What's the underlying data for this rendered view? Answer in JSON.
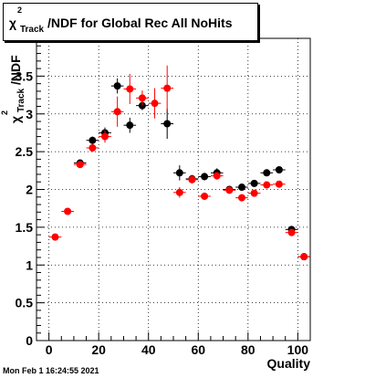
{
  "chart_data": {
    "type": "scatter",
    "title": "χ²_Track/NDF for Global Rec All NoHits",
    "title_parts": {
      "symbol": "χ",
      "sup": "2",
      "sub": "Track",
      "rest": "/NDF for Global Rec All NoHits"
    },
    "xlabel": "Quality",
    "ylabel_parts": {
      "symbol": "χ",
      "sup": "2",
      "sub": "Track",
      "rest": "/NDF"
    },
    "xlim": [
      -5,
      105
    ],
    "ylim": [
      0,
      4.0
    ],
    "x_ticks": [
      0,
      20,
      40,
      60,
      80,
      100
    ],
    "y_ticks": [
      0,
      0.5,
      1,
      1.5,
      2,
      2.5,
      3,
      3.5
    ],
    "y_tick_labels": [
      "0",
      "0.5",
      "1",
      "1.5",
      "2",
      "2.5",
      "3",
      "3.5"
    ],
    "grid": true,
    "series": [
      {
        "color": "#000000",
        "points": [
          {
            "x": 12.5,
            "y": 2.35,
            "err": 0.04
          },
          {
            "x": 17.5,
            "y": 2.65,
            "err": 0.05
          },
          {
            "x": 22.5,
            "y": 2.75,
            "err": 0.07
          },
          {
            "x": 27.5,
            "y": 3.37,
            "err": 0.1
          },
          {
            "x": 32.5,
            "y": 2.85,
            "err": 0.1
          },
          {
            "x": 37.5,
            "y": 3.11,
            "err": 0.06
          },
          {
            "x": 47.5,
            "y": 2.87,
            "err": 0.2
          },
          {
            "x": 52.5,
            "y": 2.22,
            "err": 0.1
          },
          {
            "x": 57.5,
            "y": 2.14,
            "err": 0.05
          },
          {
            "x": 62.5,
            "y": 2.17,
            "err": 0.05
          },
          {
            "x": 67.5,
            "y": 2.22,
            "err": 0.06
          },
          {
            "x": 72.5,
            "y": 2.0,
            "err": 0.04
          },
          {
            "x": 77.5,
            "y": 2.03,
            "err": 0.04
          },
          {
            "x": 82.5,
            "y": 2.08,
            "err": 0.04
          },
          {
            "x": 87.5,
            "y": 2.22,
            "err": 0.03
          },
          {
            "x": 92.5,
            "y": 2.26,
            "err": 0.03
          },
          {
            "x": 97.5,
            "y": 1.47,
            "err": 0.03
          },
          {
            "x": 102.5,
            "y": 1.11,
            "err": 0.02
          }
        ]
      },
      {
        "color": "#ff0000",
        "points": [
          {
            "x": 2.5,
            "y": 1.37,
            "err": 0.02
          },
          {
            "x": 7.5,
            "y": 1.71,
            "err": 0.02
          },
          {
            "x": 12.5,
            "y": 2.33,
            "err": 0.03
          },
          {
            "x": 17.5,
            "y": 2.55,
            "err": 0.05
          },
          {
            "x": 22.5,
            "y": 2.7,
            "err": 0.08
          },
          {
            "x": 27.5,
            "y": 3.03,
            "err": 0.2
          },
          {
            "x": 32.5,
            "y": 3.33,
            "err": 0.2
          },
          {
            "x": 37.5,
            "y": 3.21,
            "err": 0.1
          },
          {
            "x": 42.5,
            "y": 3.14,
            "err": 0.2
          },
          {
            "x": 47.5,
            "y": 3.34,
            "err": 0.3
          },
          {
            "x": 52.5,
            "y": 1.96,
            "err": 0.07
          },
          {
            "x": 57.5,
            "y": 2.13,
            "err": 0.05
          },
          {
            "x": 62.5,
            "y": 1.91,
            "err": 0.05
          },
          {
            "x": 67.5,
            "y": 2.18,
            "err": 0.05
          },
          {
            "x": 72.5,
            "y": 1.99,
            "err": 0.04
          },
          {
            "x": 77.5,
            "y": 1.89,
            "err": 0.04
          },
          {
            "x": 82.5,
            "y": 1.95,
            "err": 0.03
          },
          {
            "x": 87.5,
            "y": 2.06,
            "err": 0.03
          },
          {
            "x": 92.5,
            "y": 2.07,
            "err": 0.03
          },
          {
            "x": 97.5,
            "y": 1.43,
            "err": 0.02
          },
          {
            "x": 102.5,
            "y": 1.11,
            "err": 0.02
          }
        ]
      }
    ]
  },
  "footer": {
    "timestamp": "Mon Feb  1 16:24:55 2021"
  }
}
